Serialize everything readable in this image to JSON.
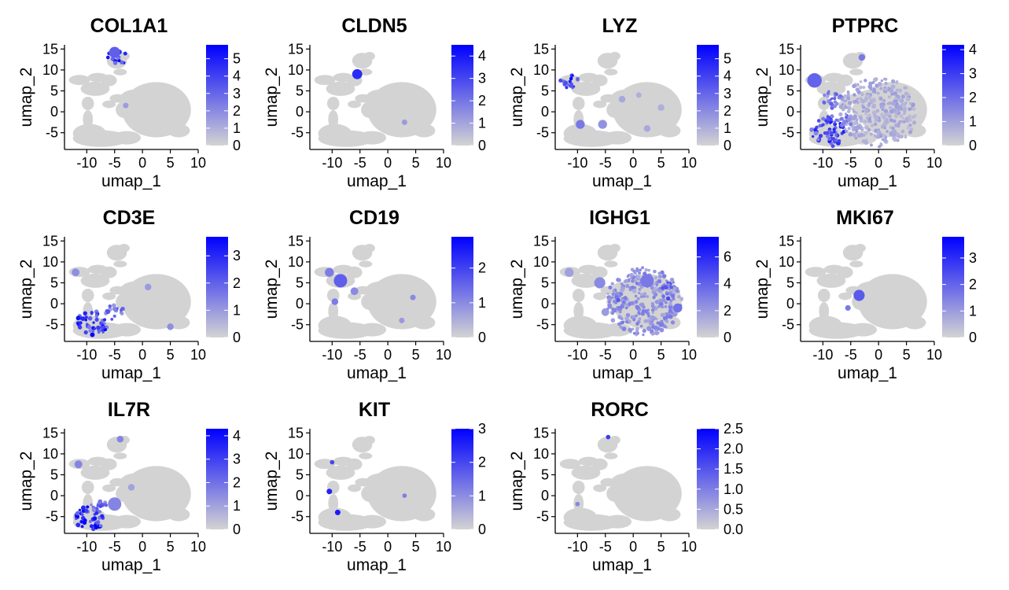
{
  "colors": {
    "low": "#d3d3d3",
    "high": "#0000ff",
    "axis": "#000000",
    "background": "#ffffff"
  },
  "chart_data": [
    {
      "type": "scatter",
      "title": "COL1A1",
      "xlabel": "umap_1",
      "ylabel": "umap_2",
      "xlim": [
        -14,
        10
      ],
      "ylim": [
        -9,
        16
      ],
      "xticks": [
        "-10",
        "-5",
        "0",
        "5",
        "10"
      ],
      "yticks": [
        "-5",
        "0",
        "5",
        "10",
        "15"
      ],
      "legend": {
        "position": "right",
        "min": 0,
        "max": 5.8,
        "ticks": [
          "0",
          "1",
          "2",
          "3",
          "4",
          "5"
        ]
      },
      "grid": false,
      "hotspots": [
        {
          "x": -4.5,
          "y": 13,
          "r": 1.8,
          "value": 4.0
        },
        {
          "x": -5.0,
          "y": 14.2,
          "r": 1.0,
          "value": 3.2
        },
        {
          "x": -3.0,
          "y": 1.5,
          "r": 0.5,
          "value": 1.5
        }
      ]
    },
    {
      "type": "scatter",
      "title": "CLDN5",
      "xlabel": "umap_1",
      "ylabel": "umap_2",
      "xlim": [
        -14,
        10
      ],
      "ylim": [
        -9,
        16
      ],
      "xticks": [
        "-10",
        "-5",
        "0",
        "5",
        "10"
      ],
      "yticks": [
        "-5",
        "0",
        "5",
        "10",
        "15"
      ],
      "legend": {
        "position": "right",
        "min": 0,
        "max": 4.5,
        "ticks": [
          "0",
          "1",
          "2",
          "3",
          "4"
        ]
      },
      "grid": false,
      "hotspots": [
        {
          "x": -5.5,
          "y": 9,
          "r": 0.9,
          "value": 3.6
        },
        {
          "x": 3.0,
          "y": -2.5,
          "r": 0.5,
          "value": 1.2
        }
      ]
    },
    {
      "type": "scatter",
      "title": "LYZ",
      "xlabel": "umap_1",
      "ylabel": "umap_2",
      "xlim": [
        -14,
        10
      ],
      "ylim": [
        -9,
        16
      ],
      "xticks": [
        "-10",
        "-5",
        "0",
        "5",
        "10"
      ],
      "yticks": [
        "-5",
        "0",
        "5",
        "10",
        "15"
      ],
      "legend": {
        "position": "right",
        "min": 0,
        "max": 5.8,
        "ticks": [
          "0",
          "1",
          "2",
          "3",
          "4",
          "5"
        ]
      },
      "grid": false,
      "hotspots": [
        {
          "x": -11.5,
          "y": 7.5,
          "r": 1.6,
          "value": 4.5
        },
        {
          "x": -9.5,
          "y": -3,
          "r": 0.8,
          "value": 2.5
        },
        {
          "x": -5.5,
          "y": -3,
          "r": 0.8,
          "value": 1.8
        },
        {
          "x": -2.0,
          "y": 3,
          "r": 0.6,
          "value": 1.2
        },
        {
          "x": 2.5,
          "y": -4,
          "r": 0.6,
          "value": 1.2
        },
        {
          "x": 5.0,
          "y": 1,
          "r": 0.6,
          "value": 1.0
        },
        {
          "x": 1.0,
          "y": 4,
          "r": 0.5,
          "value": 1.0
        }
      ]
    },
    {
      "type": "scatter",
      "title": "PTPRC",
      "xlabel": "umap_1",
      "ylabel": "umap_2",
      "xlim": [
        -14,
        10
      ],
      "ylim": [
        -9,
        16
      ],
      "xticks": [
        "-10",
        "-5",
        "0",
        "5",
        "10"
      ],
      "yticks": [
        "-5",
        "0",
        "5",
        "10",
        "15"
      ],
      "legend": {
        "position": "right",
        "min": 0,
        "max": 4.2,
        "ticks": [
          "0",
          "1",
          "2",
          "3",
          "4"
        ]
      },
      "grid": false,
      "hotspots": [
        {
          "x": -9,
          "y": -4.5,
          "r": 3.2,
          "value": 2.6
        },
        {
          "x": -11.5,
          "y": 7.5,
          "r": 1.3,
          "value": 2.2
        },
        {
          "x": -8,
          "y": 3,
          "r": 2.0,
          "value": 1.6
        },
        {
          "x": -3,
          "y": 13,
          "r": 0.6,
          "value": 1.8
        },
        {
          "x": 0,
          "y": 0,
          "r": 7.0,
          "value": 0.8
        },
        {
          "x": -5.5,
          "y": -2,
          "r": 1.5,
          "value": 1.6
        }
      ]
    },
    {
      "type": "scatter",
      "title": "CD3E",
      "xlabel": "umap_1",
      "ylabel": "umap_2",
      "xlim": [
        -14,
        10
      ],
      "ylim": [
        -9,
        16
      ],
      "xticks": [
        "-10",
        "-5",
        "0",
        "5",
        "10"
      ],
      "yticks": [
        "-5",
        "0",
        "5",
        "10",
        "15"
      ],
      "legend": {
        "position": "right",
        "min": 0,
        "max": 3.7,
        "ticks": [
          "0",
          "1",
          "2",
          "3"
        ]
      },
      "grid": false,
      "hotspots": [
        {
          "x": -9,
          "y": -4.5,
          "r": 2.8,
          "value": 2.6
        },
        {
          "x": -5,
          "y": -2,
          "r": 1.6,
          "value": 1.6
        },
        {
          "x": -12,
          "y": 7.5,
          "r": 0.7,
          "value": 1.2
        },
        {
          "x": 1,
          "y": 4,
          "r": 0.6,
          "value": 1.0
        },
        {
          "x": 5,
          "y": -5.5,
          "r": 0.6,
          "value": 1.2
        }
      ]
    },
    {
      "type": "scatter",
      "title": "CD19",
      "xlabel": "umap_1",
      "ylabel": "umap_2",
      "xlim": [
        -14,
        10
      ],
      "ylim": [
        -9,
        16
      ],
      "xticks": [
        "-10",
        "-5",
        "0",
        "5",
        "10"
      ],
      "yticks": [
        "-5",
        "0",
        "5",
        "10",
        "15"
      ],
      "legend": {
        "position": "right",
        "min": 0,
        "max": 2.9,
        "ticks": [
          "0",
          "1",
          "2"
        ]
      },
      "grid": false,
      "hotspots": [
        {
          "x": -8.5,
          "y": 5.5,
          "r": 1.2,
          "value": 1.6
        },
        {
          "x": -10.5,
          "y": 7.5,
          "r": 0.8,
          "value": 1.2
        },
        {
          "x": -6,
          "y": 3,
          "r": 0.7,
          "value": 1.0
        },
        {
          "x": -9.5,
          "y": 0.5,
          "r": 0.6,
          "value": 1.2
        },
        {
          "x": 4.5,
          "y": 1.5,
          "r": 0.5,
          "value": 1.0
        },
        {
          "x": 2.5,
          "y": -4,
          "r": 0.5,
          "value": 0.8
        }
      ]
    },
    {
      "type": "scatter",
      "title": "IGHG1",
      "xlabel": "umap_1",
      "ylabel": "umap_2",
      "xlim": [
        -14,
        10
      ],
      "ylim": [
        -9,
        16
      ],
      "xticks": [
        "-10",
        "-5",
        "0",
        "5",
        "10"
      ],
      "yticks": [
        "-5",
        "0",
        "5",
        "10",
        "15"
      ],
      "legend": {
        "position": "right",
        "min": 0,
        "max": 7.5,
        "ticks": [
          "0",
          "2",
          "4",
          "6"
        ]
      },
      "grid": false,
      "hotspots": [
        {
          "x": 2,
          "y": 0.5,
          "r": 6.8,
          "value": 2.2
        },
        {
          "x": 6.5,
          "y": 3,
          "r": 1.6,
          "value": 3.6
        },
        {
          "x": -3,
          "y": 0,
          "r": 1.5,
          "value": 3.0
        },
        {
          "x": 2.5,
          "y": 5.5,
          "r": 1.2,
          "value": 3.2
        },
        {
          "x": -6,
          "y": 5,
          "r": 1.0,
          "value": 2.6
        },
        {
          "x": -11.5,
          "y": 7.5,
          "r": 0.8,
          "value": 1.8
        },
        {
          "x": 8,
          "y": -1,
          "r": 0.8,
          "value": 3.5
        },
        {
          "x": -5,
          "y": -2,
          "r": 0.7,
          "value": 2.0
        }
      ]
    },
    {
      "type": "scatter",
      "title": "MKI67",
      "xlabel": "umap_1",
      "ylabel": "umap_2",
      "xlim": [
        -14,
        10
      ],
      "ylim": [
        -9,
        16
      ],
      "xticks": [
        "-10",
        "-5",
        "0",
        "5",
        "10"
      ],
      "yticks": [
        "-5",
        "0",
        "5",
        "10",
        "15"
      ],
      "legend": {
        "position": "right",
        "min": 0,
        "max": 3.8,
        "ticks": [
          "0",
          "1",
          "2",
          "3"
        ]
      },
      "grid": false,
      "hotspots": [
        {
          "x": -3.5,
          "y": 2,
          "r": 1.0,
          "value": 2.2
        },
        {
          "x": -5.5,
          "y": -1,
          "r": 0.5,
          "value": 1.6
        }
      ]
    },
    {
      "type": "scatter",
      "title": "IL7R",
      "xlabel": "umap_1",
      "ylabel": "umap_2",
      "xlim": [
        -14,
        10
      ],
      "ylim": [
        -9,
        16
      ],
      "xticks": [
        "-10",
        "-5",
        "0",
        "5",
        "10"
      ],
      "yticks": [
        "-5",
        "0",
        "5",
        "10",
        "15"
      ],
      "legend": {
        "position": "right",
        "min": 0,
        "max": 4.3,
        "ticks": [
          "0",
          "1",
          "2",
          "3",
          "4"
        ]
      },
      "grid": false,
      "hotspots": [
        {
          "x": -9.5,
          "y": -5.5,
          "r": 2.6,
          "value": 3.2
        },
        {
          "x": -8,
          "y": -2.5,
          "r": 1.5,
          "value": 2.2
        },
        {
          "x": -5,
          "y": -2,
          "r": 1.2,
          "value": 1.6
        },
        {
          "x": -11.5,
          "y": 7.5,
          "r": 0.7,
          "value": 1.6
        },
        {
          "x": -4,
          "y": 13.5,
          "r": 0.6,
          "value": 1.6
        },
        {
          "x": -2,
          "y": 2,
          "r": 0.6,
          "value": 1.0
        }
      ]
    },
    {
      "type": "scatter",
      "title": "KIT",
      "xlabel": "umap_1",
      "ylabel": "umap_2",
      "xlim": [
        -14,
        10
      ],
      "ylim": [
        -9,
        16
      ],
      "xticks": [
        "-10",
        "-5",
        "0",
        "5",
        "10"
      ],
      "yticks": [
        "-5",
        "0",
        "5",
        "10",
        "15"
      ],
      "legend": {
        "position": "right",
        "min": 0,
        "max": 3,
        "ticks": [
          "0",
          "1",
          "2",
          "3"
        ]
      },
      "grid": false,
      "hotspots": [
        {
          "x": -10.5,
          "y": 1,
          "r": 0.5,
          "value": 2.5
        },
        {
          "x": -9,
          "y": -4,
          "r": 0.5,
          "value": 2.6
        },
        {
          "x": -10,
          "y": 8,
          "r": 0.4,
          "value": 2.0
        },
        {
          "x": 3,
          "y": 0,
          "r": 0.4,
          "value": 1.2
        }
      ]
    },
    {
      "type": "scatter",
      "title": "RORC",
      "xlabel": "umap_1",
      "ylabel": "umap_2",
      "xlim": [
        -14,
        10
      ],
      "ylim": [
        -9,
        16
      ],
      "xticks": [
        "-10",
        "-5",
        "0",
        "5",
        "10"
      ],
      "yticks": [
        "-5",
        "0",
        "5",
        "10",
        "15"
      ],
      "legend": {
        "position": "right",
        "min": 0,
        "max": 2.5,
        "ticks": [
          "0.0",
          "0.5",
          "1.0",
          "1.5",
          "2.0",
          "2.5"
        ]
      },
      "grid": false,
      "hotspots": [
        {
          "x": -4.5,
          "y": 14,
          "r": 0.4,
          "value": 1.8
        },
        {
          "x": -10,
          "y": -2,
          "r": 0.4,
          "value": 0.9
        }
      ]
    }
  ]
}
